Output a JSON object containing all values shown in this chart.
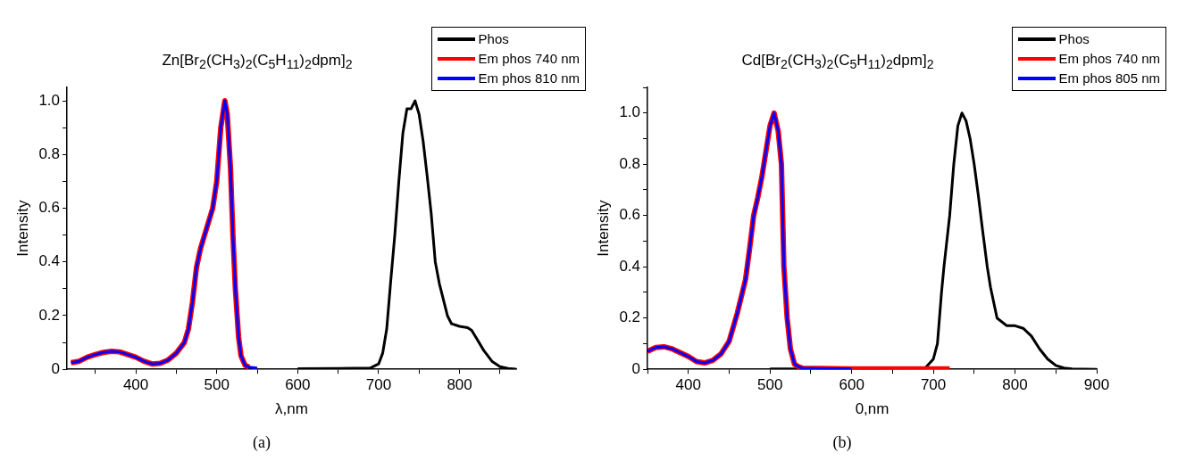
{
  "chart_data": [
    {
      "type": "line",
      "title": "Zn[Br$_{2}$(CH$_{3}$)$_{2}$(C$_{5}$H$_{11}$)$_{2}$dpm]$_{2}$",
      "xlabel": "λ,nm",
      "ylabel": "Intensity",
      "annotations": [
        "(a)"
      ],
      "legend": "top right",
      "grid": false,
      "marker": "none",
      "line_style": "solid",
      "xlim": [
        315,
        870
      ],
      "xticks": [
        {
          "value": 350,
          "label": null
        },
        400,
        {
          "value": 450,
          "label": null
        },
        500,
        {
          "value": 550,
          "label": null
        },
        600,
        {
          "value": 650,
          "label": null
        },
        700,
        {
          "value": 750,
          "label": null
        },
        800,
        {
          "value": 850,
          "label": null
        }
      ],
      "ylim": [
        0,
        1.05
      ],
      "yticks": [
        0,
        {
          "value": 0.1,
          "label": null
        },
        0.2,
        {
          "value": 0.3,
          "label": null
        },
        0.4,
        {
          "value": 0.5,
          "label": null
        },
        0.6,
        {
          "value": 0.7,
          "label": null
        },
        0.8,
        {
          "value": 0.9,
          "label": null
        },
        {
          "value": 1,
          "label": "1.0"
        }
      ],
      "series": [
        {
          "name": "Phos",
          "color": "#000000",
          "x": [
            600,
            650,
            690,
            700,
            705,
            710,
            715,
            720,
            725,
            730,
            735,
            740,
            745,
            750,
            755,
            760,
            765,
            770,
            775,
            780,
            785,
            790,
            800,
            810,
            815,
            820,
            830,
            840,
            850,
            860,
            870
          ],
          "values": [
            0.002,
            0.003,
            0.005,
            0.02,
            0.06,
            0.15,
            0.33,
            0.5,
            0.7,
            0.88,
            0.97,
            0.97,
            1.0,
            0.95,
            0.85,
            0.72,
            0.58,
            0.4,
            0.32,
            0.26,
            0.2,
            0.17,
            0.16,
            0.155,
            0.145,
            0.12,
            0.07,
            0.03,
            0.01,
            0.003,
            0.001
          ]
        },
        {
          "name": "Em phos 740 nm",
          "color": "#ff0000",
          "x": [
            320,
            330,
            340,
            350,
            360,
            370,
            380,
            390,
            400,
            410,
            420,
            430,
            440,
            450,
            460,
            465,
            470,
            475,
            480,
            490,
            495,
            500,
            505,
            510,
            513,
            517,
            520,
            523,
            527,
            530,
            535,
            540
          ],
          "values": [
            0.025,
            0.03,
            0.045,
            0.055,
            0.063,
            0.067,
            0.065,
            0.055,
            0.045,
            0.03,
            0.02,
            0.022,
            0.035,
            0.06,
            0.1,
            0.15,
            0.25,
            0.38,
            0.45,
            0.55,
            0.6,
            0.7,
            0.9,
            1.0,
            0.95,
            0.75,
            0.5,
            0.3,
            0.12,
            0.05,
            0.015,
            0.008
          ]
        },
        {
          "name": "Em phos 810 nm",
          "color": "#0000ff",
          "x": [
            320,
            330,
            340,
            350,
            360,
            370,
            380,
            390,
            400,
            410,
            420,
            430,
            440,
            450,
            460,
            465,
            470,
            475,
            480,
            490,
            495,
            500,
            505,
            510,
            513,
            517,
            520,
            523,
            527,
            530,
            535,
            540,
            550
          ],
          "values": [
            0.025,
            0.03,
            0.045,
            0.055,
            0.063,
            0.067,
            0.065,
            0.055,
            0.045,
            0.03,
            0.02,
            0.022,
            0.035,
            0.06,
            0.1,
            0.15,
            0.25,
            0.38,
            0.45,
            0.55,
            0.6,
            0.7,
            0.9,
            1.0,
            0.95,
            0.75,
            0.5,
            0.3,
            0.12,
            0.05,
            0.015,
            0.008,
            0.005
          ]
        }
      ]
    },
    {
      "type": "line",
      "title": "Cd[Br$_{2}$(CH$_{3}$)$_{2}$(C$_{5}$H$_{11}$)$_{2}$dpm]$_{2}$",
      "xlabel": "0,nm",
      "ylabel": "Intensity",
      "annotations": [
        "(b)"
      ],
      "legend": "top right",
      "grid": false,
      "marker": "none",
      "line_style": "solid",
      "xlim": [
        350,
        900
      ],
      "xticks": [
        {
          "value": 350,
          "label": null
        },
        400,
        {
          "value": 450,
          "label": null
        },
        500,
        {
          "value": 550,
          "label": null
        },
        600,
        {
          "value": 650,
          "label": null
        },
        700,
        {
          "value": 750,
          "label": null
        },
        800,
        {
          "value": 850,
          "label": null
        },
        900
      ],
      "ylim": [
        0,
        1.1
      ],
      "yticks": [
        0,
        {
          "value": 0.1,
          "label": null
        },
        0.2,
        {
          "value": 0.3,
          "label": null
        },
        0.4,
        {
          "value": 0.5,
          "label": null
        },
        0.6,
        {
          "value": 0.7,
          "label": null
        },
        0.8,
        {
          "value": 0.9,
          "label": null
        },
        {
          "value": 1,
          "label": "1.0"
        },
        {
          "value": 1.1,
          "label": null
        }
      ],
      "series": [
        {
          "name": "Phos",
          "color": "#000000",
          "x": [
            500,
            600,
            690,
            700,
            705,
            710,
            713,
            720,
            725,
            730,
            735,
            740,
            745,
            750,
            755,
            760,
            766,
            770,
            778,
            790,
            800,
            810,
            820,
            830,
            840,
            850,
            860,
            870,
            900
          ],
          "values": [
            0.002,
            0.002,
            0.005,
            0.04,
            0.1,
            0.3,
            0.4,
            0.6,
            0.8,
            0.95,
            1.0,
            0.97,
            0.9,
            0.8,
            0.68,
            0.55,
            0.4,
            0.32,
            0.2,
            0.17,
            0.17,
            0.16,
            0.13,
            0.08,
            0.04,
            0.015,
            0.005,
            0.002,
            0
          ]
        },
        {
          "name": "Em phos 740 nm",
          "color": "#ff0000",
          "x": [
            350,
            360,
            370,
            380,
            390,
            400,
            410,
            420,
            430,
            440,
            450,
            460,
            470,
            475,
            480,
            485,
            490,
            495,
            500,
            505,
            510,
            514,
            517,
            521,
            525,
            530,
            535,
            540,
            600,
            720
          ],
          "values": [
            0.07,
            0.085,
            0.088,
            0.08,
            0.065,
            0.05,
            0.03,
            0.025,
            0.035,
            0.06,
            0.11,
            0.22,
            0.35,
            0.47,
            0.6,
            0.67,
            0.75,
            0.85,
            0.95,
            1.0,
            0.93,
            0.8,
            0.4,
            0.2,
            0.08,
            0.02,
            0.01,
            0.004,
            0.002,
            0.002
          ]
        },
        {
          "name": "Em phos 805 nm",
          "color": "#0000ff",
          "x": [
            350,
            360,
            370,
            380,
            390,
            400,
            410,
            420,
            430,
            440,
            450,
            460,
            470,
            475,
            480,
            485,
            490,
            495,
            500,
            505,
            510,
            514,
            517,
            521,
            525,
            530,
            535,
            540,
            600
          ],
          "values": [
            0.07,
            0.085,
            0.088,
            0.08,
            0.065,
            0.05,
            0.03,
            0.025,
            0.035,
            0.06,
            0.11,
            0.22,
            0.35,
            0.47,
            0.6,
            0.67,
            0.75,
            0.85,
            0.95,
            1.0,
            0.93,
            0.8,
            0.4,
            0.2,
            0.08,
            0.02,
            0.01,
            0.004,
            0.002
          ]
        }
      ]
    }
  ]
}
